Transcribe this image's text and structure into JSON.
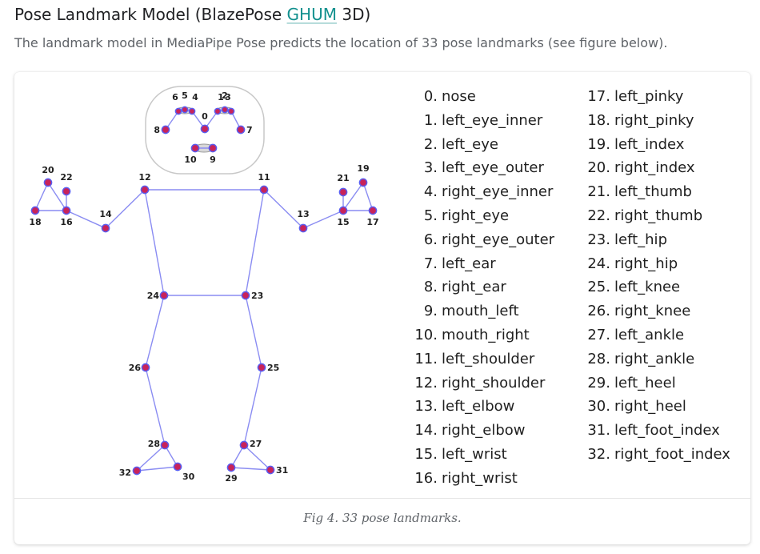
{
  "heading": {
    "prefix": "Pose Landmark Model (BlazePose ",
    "link": "GHUM",
    "suffix": " 3D)"
  },
  "intro": "The landmark model in MediaPipe Pose predicts the location of 33 pose landmarks (see figure below).",
  "colors": {
    "link": "#12908e",
    "skeleton_line": "#8a8cf2",
    "joint_fill": "#c8235a",
    "joint_ring": "#5a5df0"
  },
  "landmarks": [
    {
      "index": "0.",
      "name": "nose"
    },
    {
      "index": "1.",
      "name": "left_eye_inner"
    },
    {
      "index": "2.",
      "name": "left_eye"
    },
    {
      "index": "3.",
      "name": "left_eye_outer"
    },
    {
      "index": "4.",
      "name": "right_eye_inner"
    },
    {
      "index": "5.",
      "name": "right_eye"
    },
    {
      "index": "6.",
      "name": "right_eye_outer"
    },
    {
      "index": "7.",
      "name": "left_ear"
    },
    {
      "index": "8.",
      "name": "right_ear"
    },
    {
      "index": "9.",
      "name": "mouth_left"
    },
    {
      "index": "10.",
      "name": "mouth_right"
    },
    {
      "index": "11.",
      "name": "left_shoulder"
    },
    {
      "index": "12.",
      "name": "right_shoulder"
    },
    {
      "index": "13.",
      "name": "left_elbow"
    },
    {
      "index": "14.",
      "name": "right_elbow"
    },
    {
      "index": "15.",
      "name": "left_wrist"
    },
    {
      "index": "16.",
      "name": "right_wrist"
    },
    {
      "index": "17.",
      "name": "left_pinky"
    },
    {
      "index": "18.",
      "name": "right_pinky"
    },
    {
      "index": "19.",
      "name": "left_index"
    },
    {
      "index": "20.",
      "name": "right_index"
    },
    {
      "index": "21.",
      "name": "left_thumb"
    },
    {
      "index": "22.",
      "name": "right_thumb"
    },
    {
      "index": "23.",
      "name": "left_hip"
    },
    {
      "index": "24.",
      "name": "right_hip"
    },
    {
      "index": "25.",
      "name": "left_knee"
    },
    {
      "index": "26.",
      "name": "right_knee"
    },
    {
      "index": "27.",
      "name": "left_ankle"
    },
    {
      "index": "28.",
      "name": "right_ankle"
    },
    {
      "index": "29.",
      "name": "left_heel"
    },
    {
      "index": "30.",
      "name": "right_heel"
    },
    {
      "index": "31.",
      "name": "left_foot_index"
    },
    {
      "index": "32.",
      "name": "right_foot_index"
    }
  ],
  "figure": {
    "joint_labels": [
      "0",
      "1",
      "2",
      "3",
      "4",
      "5",
      "6",
      "7",
      "8",
      "9",
      "10",
      "11",
      "12",
      "13",
      "14",
      "15",
      "16",
      "17",
      "18",
      "19",
      "20",
      "21",
      "22",
      "23",
      "24",
      "25",
      "26",
      "27",
      "28",
      "29",
      "30",
      "31",
      "32"
    ]
  },
  "caption": "Fig 4. 33 pose landmarks."
}
